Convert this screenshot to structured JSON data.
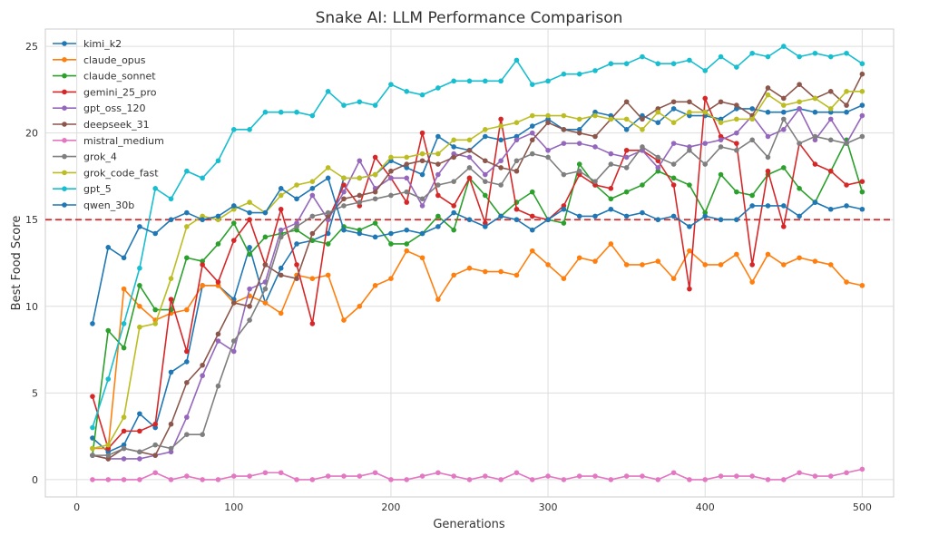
{
  "chart_data": {
    "type": "line",
    "title": "Snake AI: LLM Performance Comparison",
    "xlabel": "Generations",
    "ylabel": "Best Food Score",
    "xlim": [
      -20,
      520
    ],
    "ylim": [
      -1,
      26
    ],
    "xticks": [
      0,
      100,
      200,
      300,
      400,
      500
    ],
    "yticks": [
      0,
      5,
      10,
      15,
      20,
      25
    ],
    "grid": true,
    "legend": "top-left",
    "reference_line": {
      "y": 15,
      "color": "#d62728",
      "style": "dashed"
    },
    "x": [
      10,
      20,
      30,
      40,
      50,
      60,
      70,
      80,
      90,
      100,
      110,
      120,
      130,
      140,
      150,
      160,
      170,
      180,
      190,
      200,
      210,
      220,
      230,
      240,
      250,
      260,
      270,
      280,
      290,
      300,
      310,
      320,
      330,
      340,
      350,
      360,
      370,
      380,
      390,
      400,
      410,
      420,
      430,
      440,
      450,
      460,
      470,
      480,
      490,
      500
    ],
    "series": [
      {
        "name": "kimi_k2",
        "color": "#1f77b4",
        "values": [
          2.4,
          1.6,
          2,
          3.8,
          3,
          6.2,
          6.8,
          11.2,
          11.2,
          10.4,
          13.4,
          10.2,
          12.2,
          13.6,
          13.8,
          14.2,
          17.4,
          17.4,
          17.6,
          18.4,
          18,
          17.6,
          19.8,
          19.2,
          19,
          19.8,
          19.6,
          19.8,
          20.4,
          20.8,
          20.2,
          20.2,
          21.2,
          21,
          20.2,
          21,
          20.6,
          21.4,
          21,
          21,
          20.8,
          21.4,
          21.4,
          21.2,
          21.2,
          21.4,
          21.2,
          21.2,
          21.2,
          21.6
        ]
      },
      {
        "name": "claude_opus",
        "color": "#ff7f0e",
        "values": [
          1.8,
          1.8,
          11,
          10,
          9.2,
          9.6,
          9.8,
          11.2,
          11.2,
          10.2,
          10.6,
          10.2,
          9.6,
          11.8,
          11.6,
          11.8,
          9.2,
          10,
          11.2,
          11.6,
          13.2,
          12.8,
          10.4,
          11.8,
          12.2,
          12,
          12,
          11.8,
          13.2,
          12.4,
          11.6,
          12.8,
          12.6,
          13.6,
          12.4,
          12.4,
          12.6,
          11.6,
          13.2,
          12.4,
          12.4,
          13,
          11.4,
          13,
          12.4,
          12.8,
          12.6,
          12.4,
          11.4,
          11.2
        ]
      },
      {
        "name": "claude_sonnet",
        "color": "#2ca02c",
        "values": [
          1.4,
          8.6,
          7.6,
          11.2,
          9.8,
          9.8,
          12.8,
          12.6,
          13.6,
          14.8,
          13,
          14,
          14.2,
          14.4,
          13.8,
          13.6,
          14.6,
          14.4,
          14.8,
          13.6,
          13.6,
          14.2,
          15.2,
          14.4,
          17.4,
          16.4,
          15.2,
          16,
          16.6,
          15,
          14.8,
          18.2,
          17,
          16.2,
          16.6,
          17,
          17.8,
          17.4,
          17,
          15.4,
          17.6,
          16.6,
          16.4,
          17.6,
          18,
          16.8,
          16,
          17.8,
          19.6,
          16.6
        ]
      },
      {
        "name": "gemini_25_pro",
        "color": "#d62728",
        "values": [
          4.8,
          1.8,
          2.8,
          2.8,
          3.2,
          10.4,
          7.4,
          12.4,
          11.4,
          13.8,
          15,
          12.4,
          15.6,
          12.4,
          9,
          15,
          17,
          15.8,
          18.6,
          17.4,
          16,
          20,
          16.4,
          15.8,
          17.4,
          14.8,
          20.8,
          15.6,
          15.2,
          15,
          15.8,
          17.6,
          17,
          16.8,
          19,
          19,
          18.4,
          17,
          11,
          22,
          19.8,
          19.4,
          12.4,
          17.8,
          14.6,
          19.4,
          18.2,
          17.8,
          17,
          17.2
        ]
      },
      {
        "name": "gpt_oss_120",
        "color": "#9467bd",
        "values": [
          1.4,
          1.2,
          1.2,
          1.2,
          1.4,
          1.6,
          3.6,
          6,
          8,
          7.4,
          11,
          11.4,
          14.4,
          14.8,
          16.4,
          15,
          16.6,
          18.4,
          16.8,
          17.4,
          17.4,
          15.8,
          17.6,
          18.8,
          18.6,
          17.6,
          18.4,
          19.6,
          20,
          19,
          19.4,
          19.4,
          19.2,
          18.8,
          18.6,
          19,
          18,
          19.4,
          19.2,
          19.4,
          19.6,
          20,
          21,
          19.8,
          20.2,
          21.4,
          19.6,
          20.8,
          19.4,
          21
        ]
      },
      {
        "name": "deepseek_31",
        "color": "#8c564b",
        "values": [
          1.4,
          1.2,
          1.8,
          1.6,
          1.4,
          3.2,
          5.6,
          6.6,
          8.4,
          10.2,
          10,
          12.4,
          11.8,
          11.6,
          14.2,
          15.2,
          16.2,
          16.4,
          16.6,
          17.8,
          18.2,
          18.4,
          18.2,
          18.6,
          19,
          18.4,
          18,
          17.8,
          19.6,
          20.6,
          20.2,
          20,
          19.8,
          20.8,
          21.8,
          20.8,
          21.4,
          21.8,
          21.8,
          21.2,
          21.8,
          21.6,
          21,
          22.6,
          22,
          22.8,
          22,
          22.4,
          21.6,
          23.4
        ]
      },
      {
        "name": "mistral_medium",
        "color": "#e377c2",
        "values": [
          0,
          0,
          0,
          0,
          0.4,
          0,
          0.2,
          0,
          0,
          0.2,
          0.2,
          0.4,
          0.4,
          0,
          0,
          0.2,
          0.2,
          0.2,
          0.4,
          0,
          0,
          0.2,
          0.4,
          0.2,
          0,
          0.2,
          0,
          0.4,
          0,
          0.2,
          0,
          0.2,
          0.2,
          0,
          0.2,
          0.2,
          0,
          0.4,
          0,
          0,
          0.2,
          0.2,
          0.2,
          0,
          0,
          0.4,
          0.2,
          0.2,
          0.4,
          0.6
        ]
      },
      {
        "name": "grok_4",
        "color": "#7f7f7f",
        "values": [
          1.4,
          1.4,
          1.8,
          1.6,
          2,
          1.8,
          2.6,
          2.6,
          5.4,
          8,
          9.2,
          11,
          14,
          14.6,
          15.2,
          15.4,
          15.8,
          16,
          16.2,
          16.4,
          16.6,
          16.2,
          17,
          17.2,
          18,
          17.2,
          17,
          18.4,
          18.8,
          18.6,
          17.6,
          17.8,
          17.2,
          18.2,
          18,
          19.2,
          18.6,
          18.2,
          19,
          18.2,
          19.2,
          19,
          19.6,
          18.6,
          20.8,
          19.4,
          19.8,
          19.6,
          19.4,
          19.8
        ]
      },
      {
        "name": "grok_code_fast",
        "color": "#bcbd22",
        "values": [
          1.8,
          2,
          3.6,
          8.8,
          9,
          11.6,
          14.6,
          15.2,
          15,
          15.6,
          16,
          15.4,
          16.4,
          17,
          17.2,
          18,
          17.4,
          17.4,
          17.6,
          18.6,
          18.6,
          18.8,
          18.8,
          19.6,
          19.6,
          20.2,
          20.4,
          20.6,
          21,
          21,
          21,
          20.8,
          21,
          20.8,
          20.8,
          20.2,
          21.2,
          20.6,
          21.2,
          21.2,
          20.6,
          20.8,
          20.8,
          22.2,
          21.6,
          21.8,
          22,
          21.4,
          22.4,
          22.4
        ]
      },
      {
        "name": "gpt_5",
        "color": "#17becf",
        "values": [
          3,
          5.8,
          9,
          12.2,
          16.8,
          16.2,
          17.8,
          17.4,
          18.4,
          20.2,
          20.2,
          21.2,
          21.2,
          21.2,
          21,
          22.4,
          21.6,
          21.8,
          21.6,
          22.8,
          22.4,
          22.2,
          22.6,
          23,
          23,
          23,
          23,
          24.2,
          22.8,
          23,
          23.4,
          23.4,
          23.6,
          24,
          24,
          24.4,
          24,
          24,
          24.2,
          23.6,
          24.4,
          23.8,
          24.6,
          24.4,
          25,
          24.4,
          24.6,
          24.4,
          24.6,
          24
        ]
      },
      {
        "name": "qwen_30b",
        "color": "#1f77b4",
        "values": [
          9,
          13.4,
          12.8,
          14.6,
          14.2,
          15,
          15.4,
          15,
          15.2,
          15.8,
          15.4,
          15.4,
          16.8,
          16.2,
          16.8,
          17.4,
          14.4,
          14.2,
          14,
          14.2,
          14.4,
          14.2,
          14.6,
          15.4,
          15,
          14.6,
          15.2,
          15,
          14.4,
          15,
          15.6,
          15.2,
          15.2,
          15.6,
          15.2,
          15.4,
          15,
          15.2,
          14.6,
          15.2,
          15,
          15,
          15.8,
          15.8,
          15.8,
          15.2,
          16,
          15.6,
          15.8,
          15.6
        ]
      }
    ]
  }
}
